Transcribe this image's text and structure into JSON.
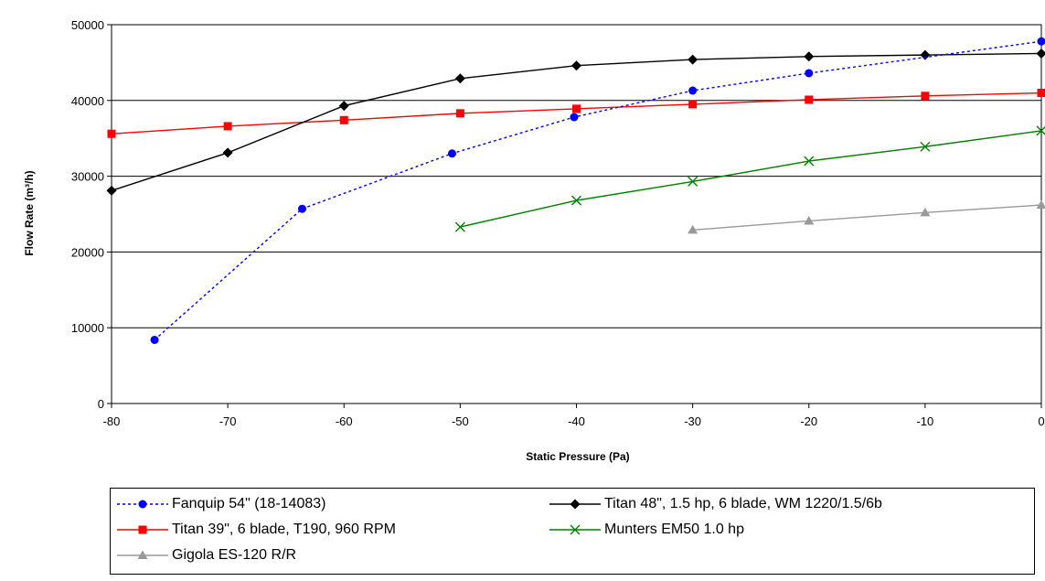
{
  "chart_data": {
    "type": "line",
    "xlabel": "Static Pressure (Pa)",
    "ylabel": "Flow Rate (m³/h)",
    "xlim": [
      -80,
      0
    ],
    "ylim": [
      0,
      50000
    ],
    "x_ticks": [
      "-80",
      "-70",
      "-60",
      "-50",
      "-40",
      "-30",
      "-20",
      "-10",
      "0"
    ],
    "y_ticks": [
      "0",
      "10000",
      "20000",
      "30000",
      "40000",
      "50000"
    ],
    "grid": "horizontal",
    "legend_position": "bottom",
    "series": [
      {
        "name": "Fanquip 54\" (18-14083)",
        "color": "#0000ff",
        "line_style": "dotted",
        "marker": "circle",
        "points": [
          [
            -76.3,
            8400
          ],
          [
            -63.6,
            25700
          ],
          [
            -50.7,
            33000
          ],
          [
            -40.2,
            37800
          ],
          [
            -30,
            41300
          ],
          [
            -20,
            43600
          ],
          [
            0,
            47800
          ]
        ]
      },
      {
        "name": "Titan 48\", 1.5 hp, 6 blade, WM 1220/1.5/6b",
        "color": "#000000",
        "line_style": "solid",
        "marker": "diamond",
        "points": [
          [
            -80,
            28100
          ],
          [
            -70,
            33100
          ],
          [
            -60,
            39300
          ],
          [
            -50,
            42900
          ],
          [
            -40,
            44600
          ],
          [
            -30,
            45400
          ],
          [
            -20,
            45800
          ],
          [
            -10,
            46000
          ],
          [
            0,
            46200
          ]
        ]
      },
      {
        "name": "Titan 39\", 6 blade, T190, 960 RPM",
        "color": "#ff0000",
        "line_style": "solid",
        "marker": "square",
        "points": [
          [
            -80,
            35600
          ],
          [
            -70,
            36600
          ],
          [
            -60,
            37400
          ],
          [
            -50,
            38300
          ],
          [
            -40,
            38900
          ],
          [
            -30,
            39500
          ],
          [
            -20,
            40100
          ],
          [
            -10,
            40600
          ],
          [
            0,
            41000
          ]
        ]
      },
      {
        "name": "Munters EM50 1.0 hp",
        "color": "#008000",
        "line_style": "solid",
        "marker": "x",
        "points": [
          [
            -50,
            23300
          ],
          [
            -40,
            26800
          ],
          [
            -30,
            29300
          ],
          [
            -20,
            32000
          ],
          [
            -10,
            33900
          ],
          [
            0,
            36000
          ]
        ]
      },
      {
        "name": "Gigola ES-120 R/R",
        "color": "#999999",
        "line_style": "solid",
        "marker": "triangle",
        "points": [
          [
            -30,
            22900
          ],
          [
            -20,
            24100
          ],
          [
            -10,
            25200
          ],
          [
            0,
            26200
          ]
        ]
      }
    ]
  }
}
